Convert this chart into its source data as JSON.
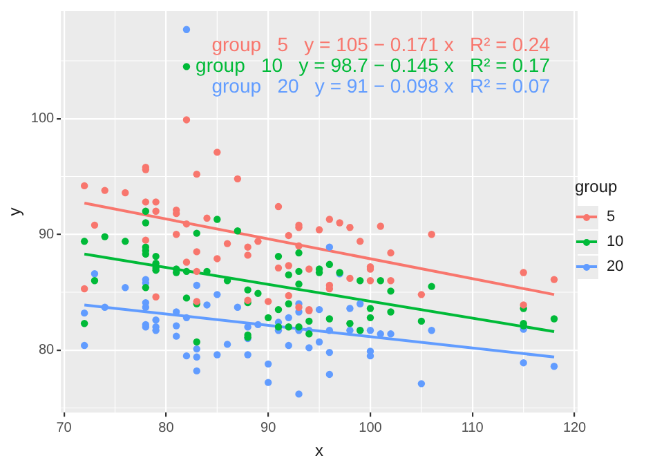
{
  "chart_data": {
    "type": "scatter",
    "xlabel": "x",
    "ylabel": "y",
    "legend_title": "group",
    "legend": "right",
    "grid": true,
    "marker": "circle",
    "xlim": [
      69.7,
      120.3
    ],
    "xticks": [
      70,
      80,
      90,
      100,
      110,
      120
    ],
    "ylim": [
      74.6,
      109.3
    ],
    "yticks": [
      80,
      90,
      100
    ],
    "annotations": [
      "group   5   y = 105 − 0.171 x   R² = 0.24",
      "group   10   y = 98.7 − 0.145 x   R² = 0.17",
      "group   20   y = 91 − 0.098 x   R² = 0.07"
    ],
    "series": [
      {
        "name": "5",
        "color": "#f8766d",
        "x": [
          82,
          85,
          78,
          78,
          83,
          87,
          72,
          74,
          76,
          78,
          79,
          79,
          81,
          81,
          91,
          73,
          82,
          84,
          81,
          78,
          83,
          86,
          88,
          88,
          85,
          82,
          83,
          72,
          79,
          83,
          88,
          89,
          90,
          91,
          92,
          92,
          93,
          93,
          93,
          93,
          92,
          94,
          96,
          97,
          98,
          95,
          101,
          99,
          106,
          102,
          94,
          96,
          96,
          100,
          100,
          98,
          100,
          102,
          105,
          94,
          115,
          115,
          118
        ],
        "values": [
          99.9,
          97.1,
          95.8,
          95.6,
          95.2,
          94.8,
          94.2,
          93.8,
          93.6,
          92.8,
          92.8,
          92.0,
          92.1,
          91.8,
          92.4,
          90.8,
          90.9,
          91.4,
          90.0,
          89.5,
          88.5,
          89.2,
          88.9,
          88.2,
          87.9,
          87.6,
          86.8,
          85.3,
          84.6,
          84.2,
          84.3,
          89.4,
          84.2,
          87.1,
          89.9,
          87.3,
          90.8,
          90.6,
          89.0,
          83.7,
          84.7,
          83.4,
          91.3,
          91.0,
          90.6,
          90.4,
          90.7,
          89.4,
          90.0,
          88.4,
          87.0,
          85.6,
          85.3,
          87.2,
          87.0,
          86.2,
          86.0,
          86.0,
          84.8,
          83.5,
          86.7,
          83.9,
          86.1
        ]
      },
      {
        "name": "10",
        "color": "#00ba38",
        "x": [
          82,
          78,
          78,
          72,
          74,
          76,
          78,
          78,
          78,
          79,
          79,
          79,
          79,
          81,
          81,
          82,
          83,
          85,
          87,
          84,
          86,
          72,
          73,
          78,
          82,
          83,
          88,
          88,
          89,
          88,
          88,
          83,
          90,
          91,
          91,
          91,
          92,
          92,
          92,
          93,
          93,
          93,
          93,
          96,
          95,
          95,
          97,
          99,
          101,
          102,
          106,
          94,
          94,
          96,
          98,
          99,
          100,
          100,
          102,
          105,
          115,
          115,
          115,
          118
        ],
        "values": [
          104.5,
          92.0,
          91.0,
          89.4,
          89.8,
          89.4,
          88.9,
          88.6,
          88.3,
          88.1,
          87.5,
          87.1,
          86.9,
          87.0,
          86.7,
          86.8,
          90.1,
          91.3,
          90.3,
          86.8,
          86.0,
          82.3,
          86.0,
          85.4,
          84.5,
          84.0,
          85.2,
          84.1,
          84.9,
          81.3,
          81.1,
          80.7,
          82.8,
          83.5,
          88.1,
          82.0,
          86.5,
          84.0,
          82.0,
          86.8,
          85.7,
          88.4,
          82.0,
          87.4,
          87.0,
          86.7,
          86.7,
          86.0,
          86.0,
          85.1,
          85.5,
          82.5,
          81.4,
          82.7,
          82.3,
          81.7,
          83.6,
          82.8,
          83.3,
          82.5,
          83.6,
          82.3,
          82.1,
          82.7
        ]
      },
      {
        "name": "20",
        "color": "#619cff",
        "x": [
          82,
          73,
          72,
          76,
          78,
          78,
          74,
          78,
          78,
          78,
          78,
          79,
          79,
          79,
          81,
          81,
          81,
          82,
          83,
          84,
          85,
          87,
          72,
          82,
          83,
          83,
          83,
          85,
          86,
          88,
          88,
          88,
          90,
          90,
          89,
          91,
          91,
          92,
          92,
          93,
          93,
          93,
          93,
          94,
          94,
          95,
          96,
          97,
          98,
          99,
          96,
          98,
          99,
          100,
          101,
          102,
          106,
          95,
          96,
          100,
          100,
          96,
          105,
          115,
          115,
          118
        ],
        "values": [
          107.7,
          86.6,
          83.2,
          85.4,
          86.1,
          85.8,
          83.7,
          84.1,
          83.7,
          82.2,
          82.0,
          82.6,
          82.0,
          81.7,
          83.3,
          82.1,
          81.2,
          82.8,
          85.6,
          83.9,
          84.8,
          83.7,
          80.4,
          79.5,
          80.1,
          79.4,
          78.2,
          79.6,
          80.5,
          82.0,
          81.0,
          79.6,
          78.8,
          77.2,
          82.2,
          82.4,
          81.7,
          82.8,
          80.4,
          84.0,
          83.3,
          81.7,
          76.2,
          81.7,
          80.2,
          83.5,
          88.9,
          86.6,
          83.6,
          84.0,
          81.7,
          81.7,
          81.7,
          81.7,
          81.4,
          81.4,
          81.7,
          80.7,
          79.8,
          79.9,
          79.5,
          77.9,
          77.1,
          81.8,
          78.9,
          78.6
        ]
      },
      {
        "type": "line",
        "marker": "none",
        "color": "#f8766d",
        "x": [
          72,
          118
        ],
        "values": [
          92.7,
          84.8
        ]
      },
      {
        "type": "line",
        "marker": "none",
        "color": "#00ba38",
        "x": [
          72,
          118
        ],
        "values": [
          88.3,
          81.6
        ]
      },
      {
        "type": "line",
        "marker": "none",
        "color": "#619cff",
        "x": [
          72,
          118
        ],
        "values": [
          83.9,
          79.4
        ]
      }
    ]
  }
}
